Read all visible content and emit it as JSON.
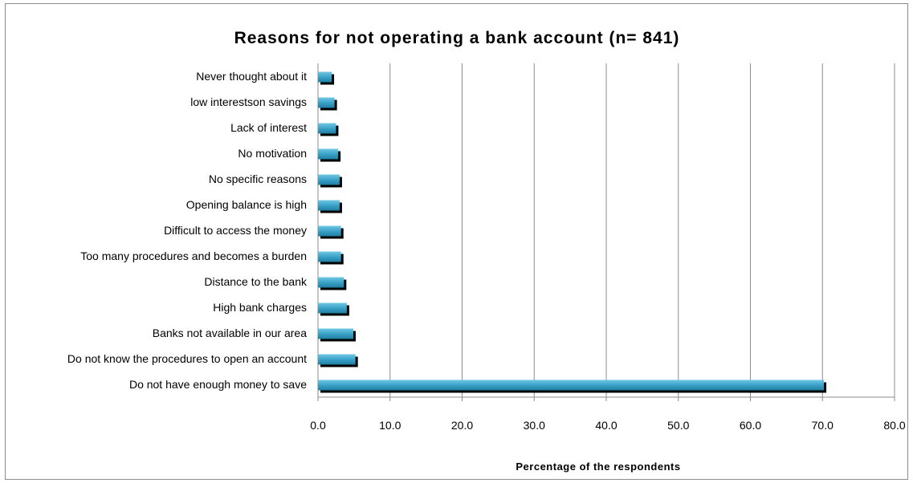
{
  "chart_data": {
    "type": "bar",
    "orientation": "horizontal",
    "title": "Reasons for not operating a bank account (n= 841)",
    "xlabel": "Percentage of the respondents",
    "ylabel": "",
    "xlim": [
      0,
      80
    ],
    "x_ticks": [
      "0.0",
      "10.0",
      "20.0",
      "30.0",
      "40.0",
      "50.0",
      "60.0",
      "70.0",
      "80.0"
    ],
    "grid": "vertical",
    "legend": "none",
    "categories": [
      "Never thought about it",
      "low interestson savings",
      "Lack of interest",
      "No motivation",
      "No specific reasons",
      "Opening balance is high",
      "Difficult to access the money",
      "Too many procedures and becomes a burden",
      "Distance to the bank",
      "High bank charges",
      "Banks not available in our area",
      "Do not know the procedures to open an account",
      "Do not have enough money to save"
    ],
    "values": [
      1.9,
      2.3,
      2.5,
      2.8,
      3.0,
      3.0,
      3.2,
      3.2,
      3.6,
      4.0,
      4.9,
      5.2,
      70.2
    ]
  },
  "colors": {
    "bar_fill": "#3aa3c8",
    "bar_shadow": "#000000",
    "gridline": "#8c8c8c",
    "border": "#8c8c8c"
  }
}
